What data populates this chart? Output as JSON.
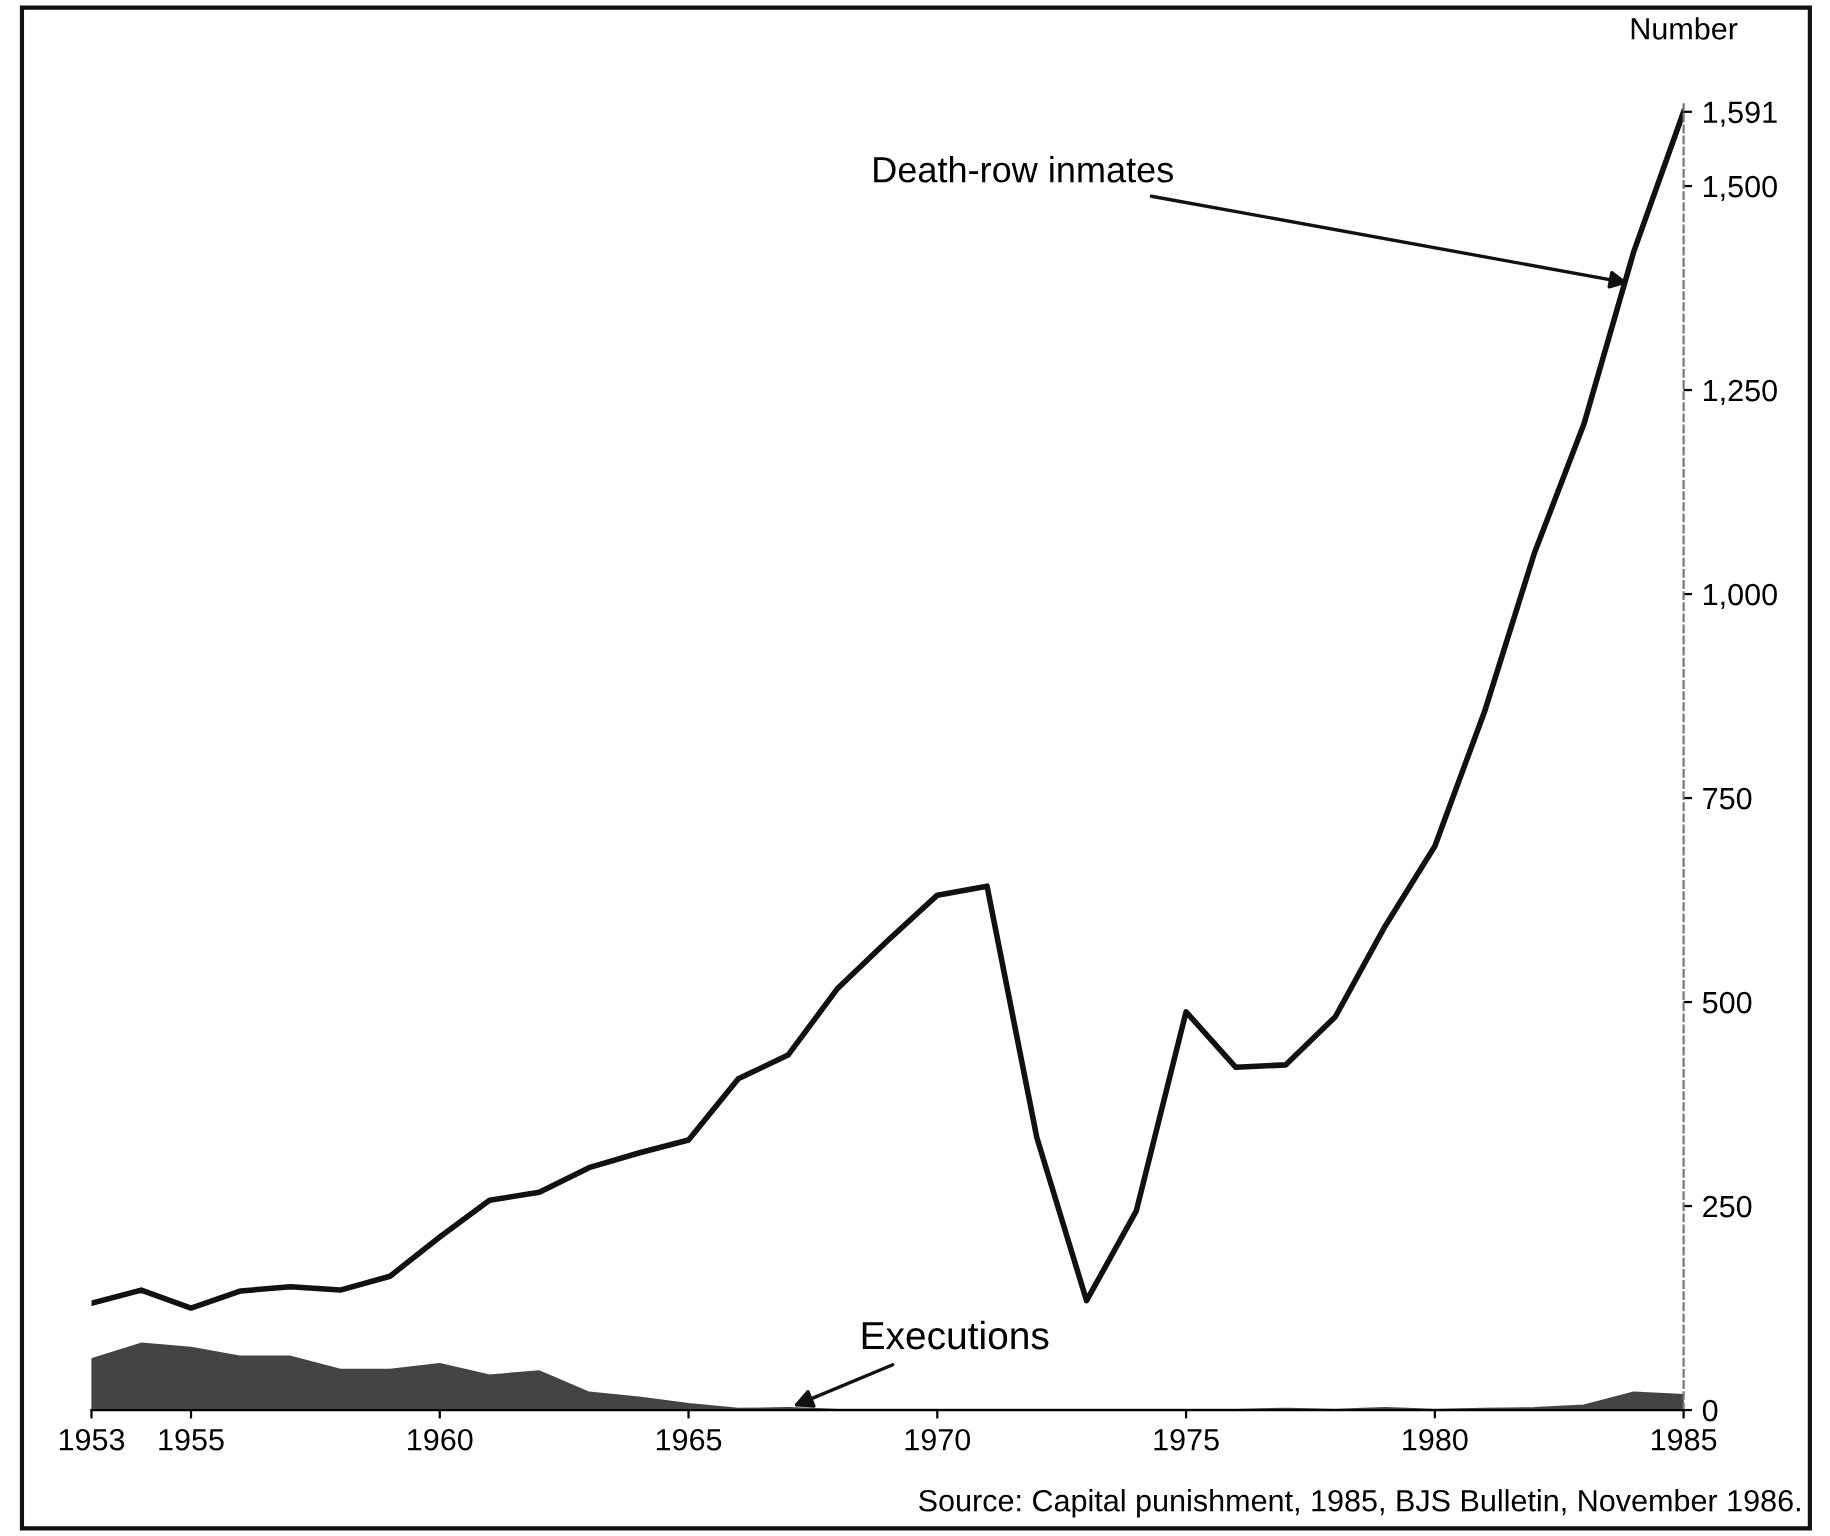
{
  "chart_data": {
    "type": "line",
    "x": [
      1953,
      1954,
      1955,
      1956,
      1957,
      1958,
      1959,
      1960,
      1961,
      1962,
      1963,
      1964,
      1965,
      1966,
      1967,
      1968,
      1969,
      1970,
      1971,
      1972,
      1973,
      1974,
      1975,
      1976,
      1977,
      1978,
      1979,
      1980,
      1981,
      1982,
      1983,
      1984,
      1985
    ],
    "series": [
      {
        "color": "#111111",
        "values": [
          131,
          147,
          125,
          146,
          151,
          147,
          164,
          212,
          257,
          267,
          297,
          315,
          331,
          406,
          435,
          517,
          575,
          631,
          642,
          334,
          134,
          244,
          488,
          420,
          423,
          482,
          593,
          691,
          856,
          1050,
          1209,
          1420,
          1591
        ]
      },
      {
        "type": "area",
        "color": "#444444",
        "values": [
          62,
          81,
          76,
          65,
          65,
          49,
          49,
          56,
          42,
          47,
          21,
          15,
          7,
          1,
          2,
          0,
          0,
          0,
          0,
          0,
          0,
          0,
          0,
          0,
          1,
          0,
          2,
          0,
          1,
          2,
          5,
          21,
          18
        ]
      }
    ],
    "ylabel": "Number",
    "xlim": [
      1953,
      1985
    ],
    "xticks": [
      1953,
      1955,
      1960,
      1965,
      1970,
      1975,
      1980,
      1985
    ],
    "ylim": [
      0,
      1600
    ],
    "yticks": [
      0,
      {
        "value": 250,
        "label": "250"
      },
      {
        "value": 500,
        "label": "500"
      },
      {
        "value": 750,
        "label": "750"
      },
      {
        "value": 1000,
        "label": "1,000"
      },
      {
        "value": 1250,
        "label": "1,250"
      },
      {
        "value": 1500,
        "label": "1,500"
      },
      {
        "value": 1591,
        "label": "1,591"
      }
    ],
    "grid": false,
    "legend": false,
    "annotations": [
      {
        "text": "Death-row inmates",
        "x": 1984,
        "y": 1380
      },
      {
        "text": "Executions",
        "x": 1967,
        "y": 2
      },
      "Source: Capital punishment, 1985, BJS Bulletin, November 1986."
    ]
  }
}
